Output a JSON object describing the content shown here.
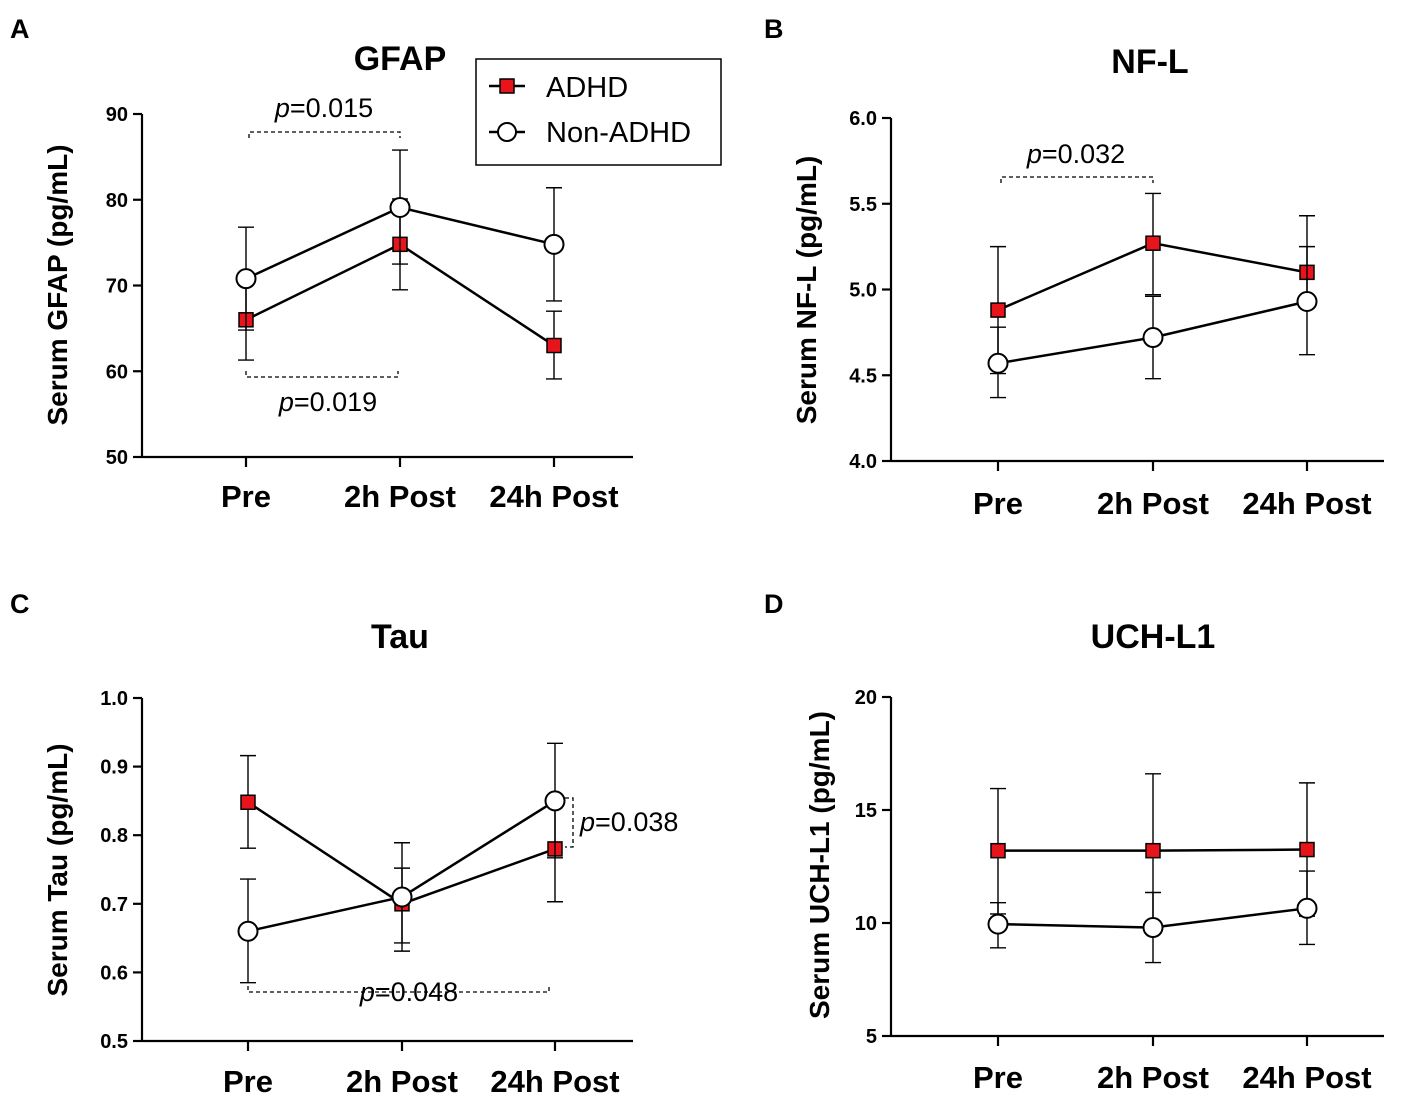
{
  "legend": {
    "items": [
      {
        "label": "ADHD",
        "marker": "square",
        "color": "#e8141c"
      },
      {
        "label": "Non-ADHD",
        "marker": "circle",
        "color": "#ffffff"
      }
    ]
  },
  "chart_data": [
    {
      "panel": "A",
      "type": "line",
      "title": "GFAP",
      "xlabel": "",
      "ylabel": "Serum GFAP (pg/mL)",
      "categories": [
        "Pre",
        "2h Post",
        "24h Post"
      ],
      "ylim": [
        50,
        90
      ],
      "yticks": [
        "50",
        "60",
        "70",
        "80",
        "90"
      ],
      "series": [
        {
          "name": "ADHD",
          "values": [
            66.0,
            74.8,
            63.0
          ],
          "err_low": [
            61.3,
            69.5,
            59.1
          ],
          "err_high": [
            70.5,
            80.1,
            67.0
          ]
        },
        {
          "name": "Non-ADHD",
          "values": [
            70.8,
            79.1,
            74.8
          ],
          "err_low": [
            64.8,
            72.5,
            68.2
          ],
          "err_high": [
            76.8,
            85.8,
            81.4
          ]
        }
      ],
      "annotations": [
        {
          "p_prefix": "p",
          "text": "=0.015"
        },
        {
          "p_prefix": "p",
          "text": "=0.019"
        }
      ]
    },
    {
      "panel": "B",
      "type": "line",
      "title": "NF-L",
      "xlabel": "",
      "ylabel": "Serum NF-L (pg/mL)",
      "categories": [
        "Pre",
        "2h Post",
        "24h Post"
      ],
      "ylim": [
        4.0,
        6.0
      ],
      "yticks": [
        "4.0",
        "4.5",
        "5.0",
        "5.5",
        "6.0"
      ],
      "series": [
        {
          "name": "ADHD",
          "values": [
            4.88,
            5.27,
            5.1
          ],
          "err_low": [
            4.51,
            4.97,
            4.95
          ],
          "err_high": [
            5.25,
            5.56,
            5.25
          ]
        },
        {
          "name": "Non-ADHD",
          "values": [
            4.57,
            4.72,
            4.93
          ],
          "err_low": [
            4.37,
            4.48,
            4.62
          ],
          "err_high": [
            4.78,
            4.96,
            5.43
          ]
        }
      ],
      "annotations": [
        {
          "p_prefix": "p",
          "text": "=0.032"
        }
      ]
    },
    {
      "panel": "C",
      "type": "line",
      "title": "Tau",
      "xlabel": "",
      "ylabel": "Serum Tau (pg/mL)",
      "categories": [
        "Pre",
        "2h Post",
        "24h Post"
      ],
      "ylim": [
        0.5,
        1.0
      ],
      "yticks": [
        "0.5",
        "0.6",
        "0.7",
        "0.8",
        "0.9",
        "1.0"
      ],
      "series": [
        {
          "name": "ADHD",
          "values": [
            0.848,
            0.7,
            0.78
          ],
          "err_low": [
            0.781,
            0.643,
            0.703
          ],
          "err_high": [
            0.916,
            0.752,
            0.856
          ]
        },
        {
          "name": "Non-ADHD",
          "values": [
            0.66,
            0.71,
            0.85
          ],
          "err_low": [
            0.585,
            0.631,
            0.767
          ],
          "err_high": [
            0.736,
            0.789,
            0.934
          ]
        }
      ],
      "annotations": [
        {
          "p_prefix": "p",
          "text": "=0.038"
        },
        {
          "p_prefix": "p",
          "text": "=0.048"
        }
      ]
    },
    {
      "panel": "D",
      "type": "line",
      "title": "UCH-L1",
      "xlabel": "",
      "ylabel": "Serum UCH-L1 (pg/mL)",
      "categories": [
        "Pre",
        "2h Post",
        "24h Post"
      ],
      "ylim": [
        5,
        20
      ],
      "yticks": [
        "5",
        "10",
        "15",
        "20"
      ],
      "series": [
        {
          "name": "ADHD",
          "values": [
            13.2,
            13.2,
            13.25
          ],
          "err_low": [
            10.4,
            9.8,
            10.3
          ],
          "err_high": [
            15.95,
            16.6,
            16.2
          ]
        },
        {
          "name": "Non-ADHD",
          "values": [
            9.95,
            9.8,
            10.65
          ],
          "err_low": [
            8.9,
            8.25,
            9.05
          ],
          "err_high": [
            10.9,
            11.35,
            12.3
          ]
        }
      ],
      "annotations": []
    }
  ]
}
